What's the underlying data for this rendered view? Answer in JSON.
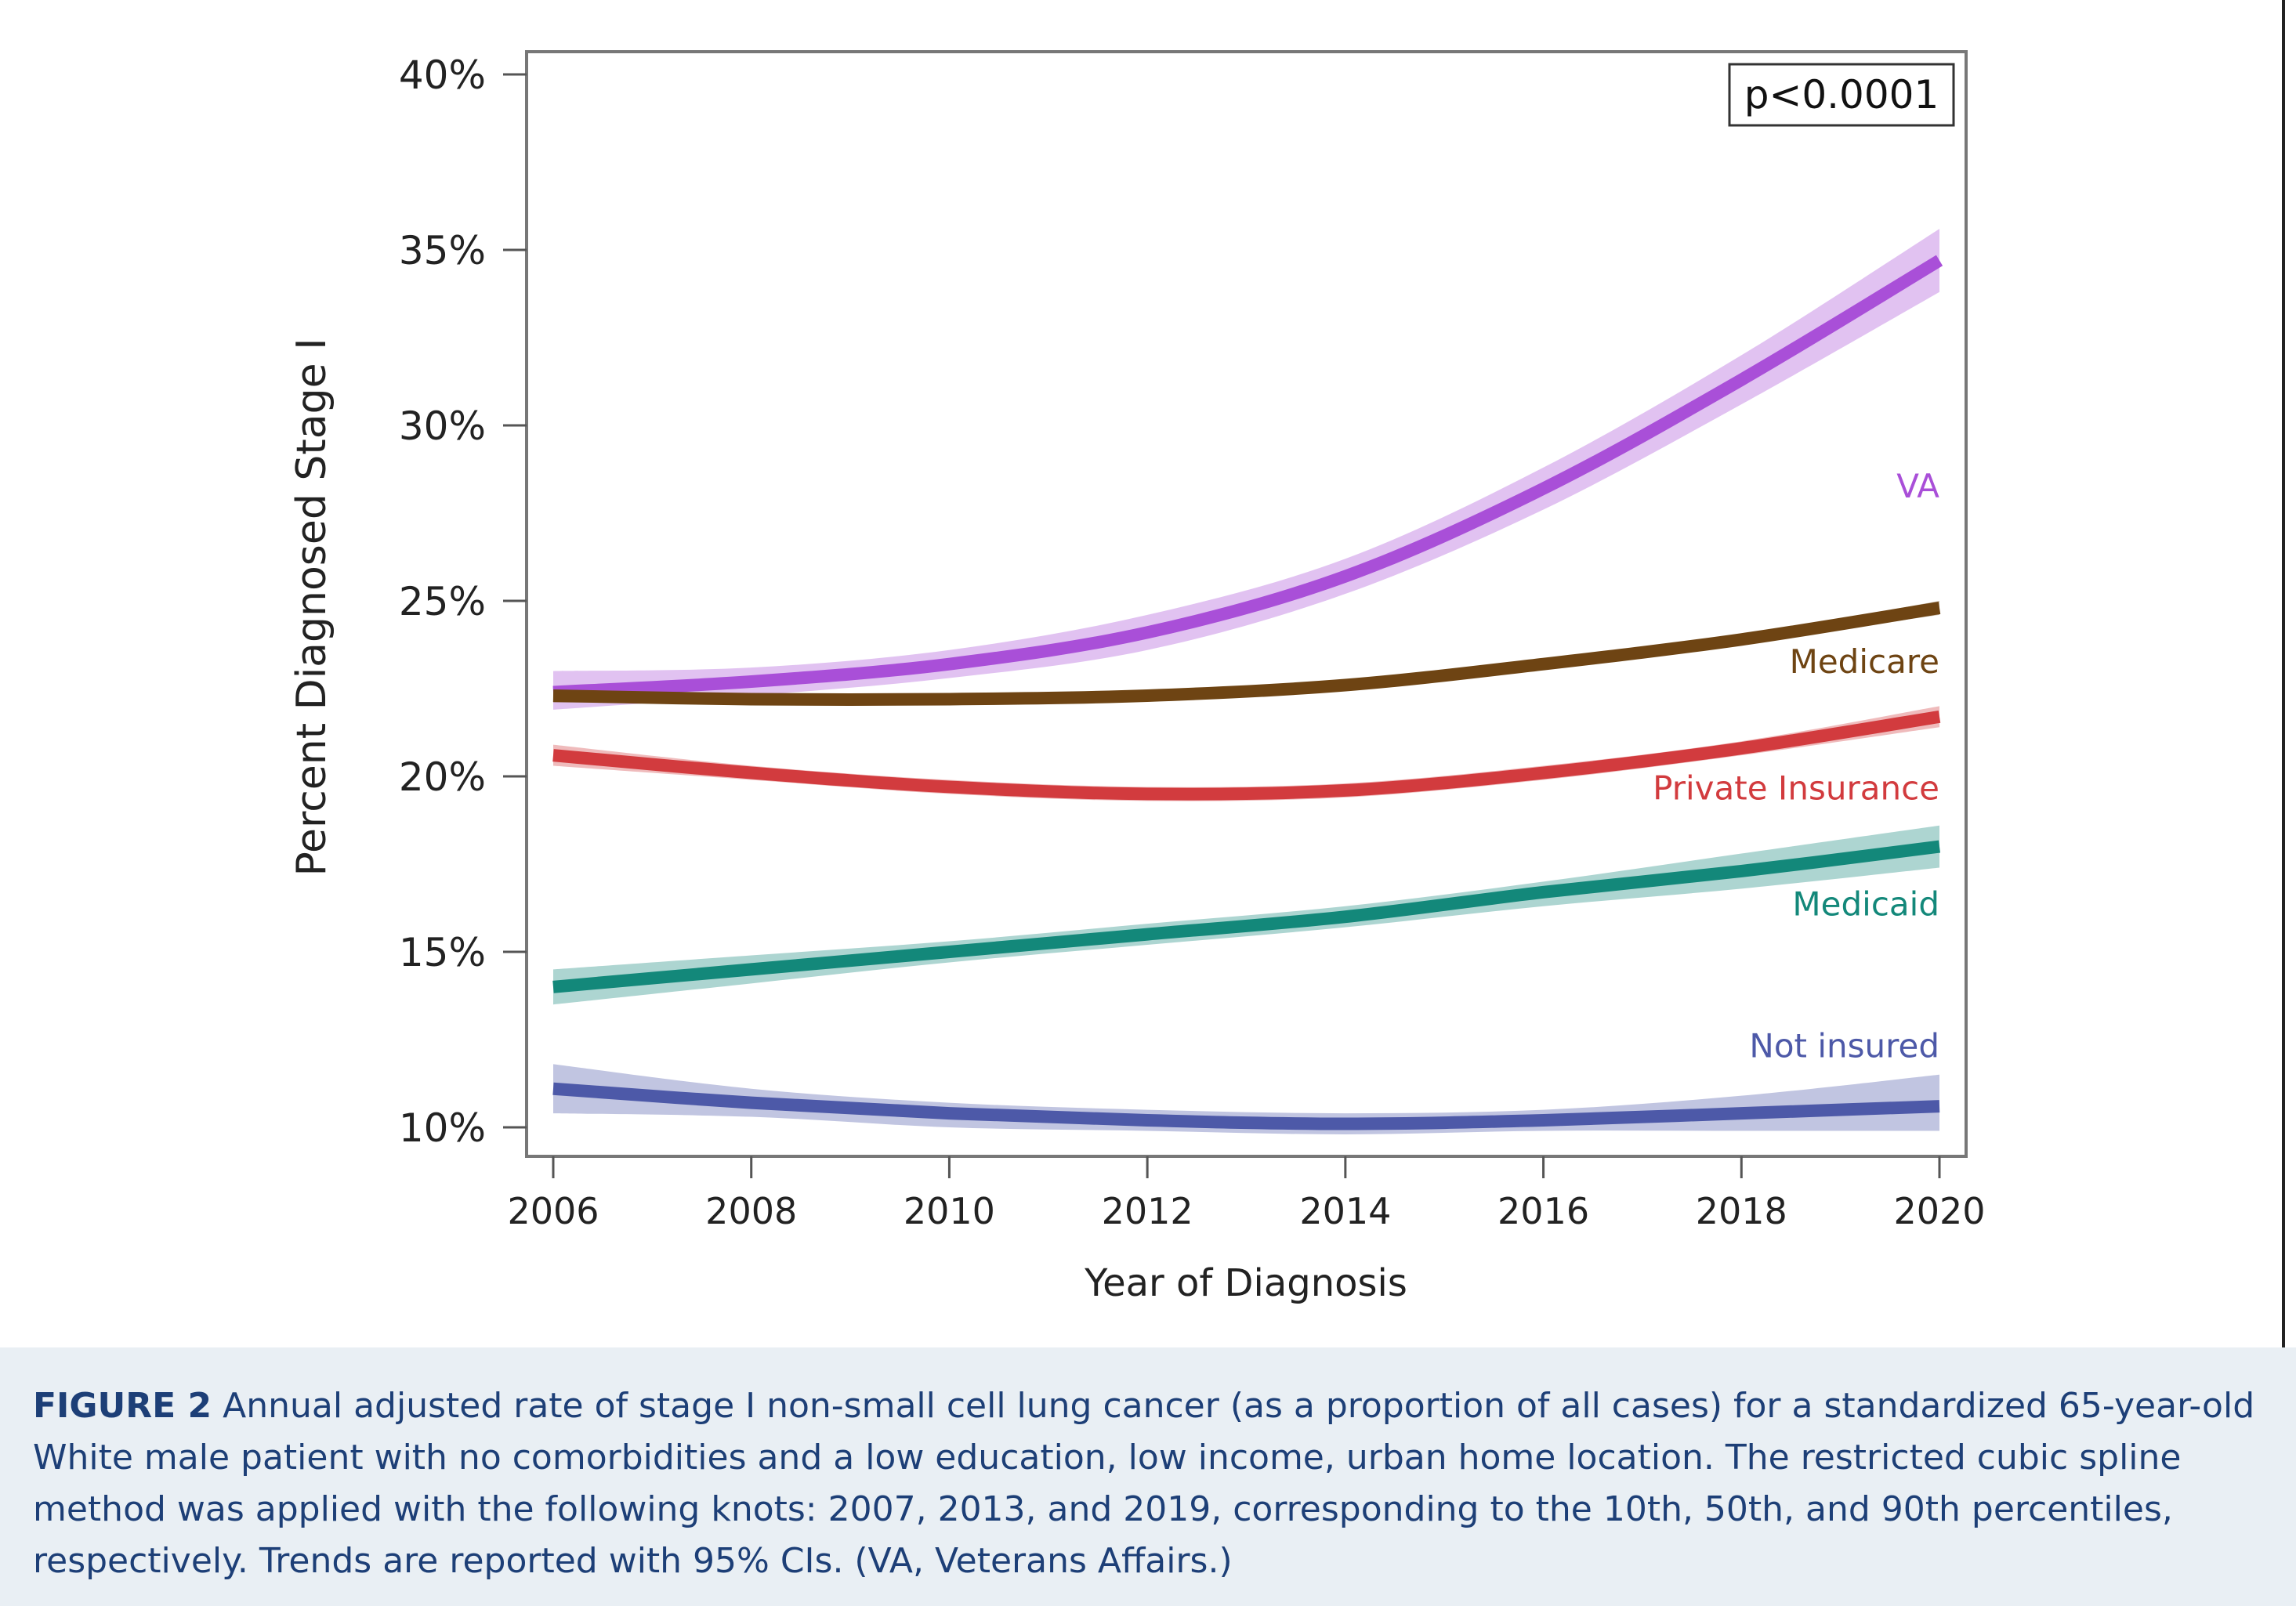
{
  "chart_data": {
    "type": "line",
    "xlabel": "Year of Diagnosis",
    "ylabel": "Percent Diagnosed Stage I",
    "xlim": [
      2006,
      2020
    ],
    "ylim": [
      10,
      40
    ],
    "x_ticks": [
      2006,
      2008,
      2010,
      2012,
      2014,
      2016,
      2018,
      2020
    ],
    "y_ticks": [
      10,
      15,
      20,
      25,
      30,
      35,
      40
    ],
    "y_tick_labels": [
      "10%",
      "15%",
      "20%",
      "25%",
      "30%",
      "35%",
      "40%"
    ],
    "x_tick_labels": [
      "2006",
      "2008",
      "2010",
      "2012",
      "2014",
      "2016",
      "2018",
      "2020"
    ],
    "annotation": "p<0.0001",
    "grid": false,
    "legend": "inline labels at right end of lines",
    "x": [
      2006,
      2008,
      2010,
      2012,
      2014,
      2016,
      2018,
      2020
    ],
    "series": [
      {
        "name": "VA",
        "color": "#a94fd8",
        "values": [
          22.4,
          22.7,
          23.2,
          24.1,
          25.7,
          28.2,
          31.3,
          34.7
        ],
        "ci_lower": [
          21.9,
          22.3,
          22.8,
          23.6,
          25.2,
          27.6,
          30.6,
          33.8
        ],
        "ci_upper": [
          23.0,
          23.1,
          23.6,
          24.6,
          26.2,
          28.8,
          32.0,
          35.6
        ]
      },
      {
        "name": "Medicare",
        "color": "#6e4413",
        "values": [
          22.3,
          22.2,
          22.2,
          22.3,
          22.6,
          23.2,
          23.9,
          24.8
        ],
        "ci_lower": [
          22.1,
          22.1,
          22.1,
          22.2,
          22.5,
          23.1,
          23.8,
          24.6
        ],
        "ci_upper": [
          22.5,
          22.3,
          22.3,
          22.4,
          22.7,
          23.3,
          24.0,
          25.0
        ]
      },
      {
        "name": "Private Insurance",
        "color": "#d23b3e",
        "values": [
          20.6,
          20.1,
          19.7,
          19.5,
          19.6,
          20.1,
          20.8,
          21.7
        ],
        "ci_lower": [
          20.3,
          19.9,
          19.5,
          19.3,
          19.4,
          19.9,
          20.6,
          21.4
        ],
        "ci_upper": [
          20.9,
          20.3,
          19.9,
          19.7,
          19.8,
          20.3,
          21.0,
          22.0
        ]
      },
      {
        "name": "Medicaid",
        "color": "#13887a",
        "values": [
          14.0,
          14.5,
          15.0,
          15.5,
          16.0,
          16.7,
          17.3,
          18.0
        ],
        "ci_lower": [
          13.5,
          14.1,
          14.7,
          15.2,
          15.7,
          16.3,
          16.8,
          17.4
        ],
        "ci_upper": [
          14.5,
          14.9,
          15.3,
          15.8,
          16.3,
          17.0,
          17.8,
          18.6
        ]
      },
      {
        "name": "Not insured",
        "color": "#4d59a8",
        "values": [
          11.1,
          10.7,
          10.4,
          10.2,
          10.1,
          10.2,
          10.4,
          10.6
        ],
        "ci_lower": [
          10.4,
          10.3,
          10.0,
          9.9,
          9.8,
          9.9,
          9.9,
          9.9
        ],
        "ci_upper": [
          11.8,
          11.1,
          10.7,
          10.5,
          10.4,
          10.5,
          10.9,
          11.5
        ]
      }
    ]
  },
  "caption": {
    "label": "FIGURE 2",
    "text": " Annual adjusted rate of stage I non-small cell lung cancer (as a proportion of all cases) for a standardized 65-year-old White male patient with no comorbidities and a low education, low income, urban home location. The restricted cubic spline method was applied with the following knots: 2007, 2013, and 2019, corresponding to the 10th, 50th, and 90th percentiles, respectively. Trends are reported with 95% CIs. (VA, Veterans Affairs.)"
  }
}
